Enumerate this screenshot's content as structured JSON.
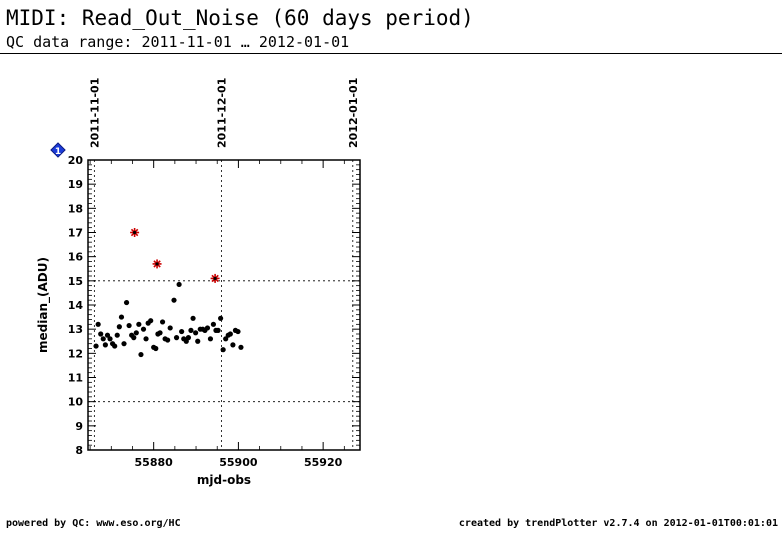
{
  "header": {
    "title": "MIDI: Read_Out_Noise (60 days period)",
    "subtitle": "QC data range: 2011-11-01 … 2012-01-01"
  },
  "footer": {
    "left": "powered by QC: www.eso.org/HC",
    "right": "created by trendPlotter v2.7.4 on 2012-01-01T00:01:01"
  },
  "chart_data": {
    "type": "scatter",
    "title": "",
    "xlabel": "mjd-obs",
    "ylabel": "median_(ADU)",
    "xlim": [
      55864.5,
      55928.7
    ],
    "ylim": [
      8,
      20
    ],
    "xticks": [
      55880,
      55900,
      55920
    ],
    "yticks": [
      8,
      9,
      10,
      11,
      12,
      13,
      14,
      15,
      16,
      17,
      18,
      19,
      20
    ],
    "date_markers": [
      {
        "label": "2011-11-01",
        "x": 55866
      },
      {
        "label": "2011-12-01",
        "x": 55896
      },
      {
        "label": "2012-01-01",
        "x": 55927
      }
    ],
    "thresholds": [
      10,
      15
    ],
    "marker_badge": "1",
    "series": [
      {
        "marker": "dot",
        "color": "#000000",
        "points": [
          [
            55866.4,
            12.3
          ],
          [
            55866.9,
            13.2
          ],
          [
            55867.5,
            12.8
          ],
          [
            55868.1,
            12.6
          ],
          [
            55868.6,
            12.35
          ],
          [
            55869.1,
            12.75
          ],
          [
            55869.7,
            12.6
          ],
          [
            55870.3,
            12.4
          ],
          [
            55870.8,
            12.3
          ],
          [
            55871.4,
            12.75
          ],
          [
            55871.9,
            13.1
          ],
          [
            55872.4,
            13.5
          ],
          [
            55873.0,
            12.4
          ],
          [
            55873.6,
            14.1
          ],
          [
            55874.2,
            13.15
          ],
          [
            55874.8,
            12.75
          ],
          [
            55875.3,
            12.65
          ],
          [
            55875.9,
            12.85
          ],
          [
            55876.5,
            13.2
          ],
          [
            55877.0,
            11.95
          ],
          [
            55877.6,
            13.0
          ],
          [
            55878.2,
            12.6
          ],
          [
            55878.7,
            13.25
          ],
          [
            55879.3,
            13.35
          ],
          [
            55880.0,
            12.25
          ],
          [
            55880.5,
            12.2
          ],
          [
            55881.0,
            12.8
          ],
          [
            55881.5,
            12.85
          ],
          [
            55882.1,
            13.3
          ],
          [
            55882.7,
            12.6
          ],
          [
            55883.3,
            12.55
          ],
          [
            55883.9,
            13.05
          ],
          [
            55884.8,
            14.2
          ],
          [
            55885.4,
            12.65
          ],
          [
            55886.0,
            14.85
          ],
          [
            55886.6,
            12.9
          ],
          [
            55887.1,
            12.6
          ],
          [
            55887.7,
            12.5
          ],
          [
            55888.2,
            12.65
          ],
          [
            55888.8,
            12.95
          ],
          [
            55889.3,
            13.45
          ],
          [
            55889.9,
            12.85
          ],
          [
            55890.4,
            12.5
          ],
          [
            55891.0,
            13.0
          ],
          [
            55891.6,
            13.0
          ],
          [
            55892.1,
            12.95
          ],
          [
            55892.7,
            13.05
          ],
          [
            55893.4,
            12.6
          ],
          [
            55894.1,
            13.2
          ],
          [
            55894.7,
            12.95
          ],
          [
            55895.2,
            12.95
          ],
          [
            55895.8,
            13.45
          ],
          [
            55896.4,
            12.15
          ],
          [
            55897.0,
            12.6
          ],
          [
            55897.6,
            12.75
          ],
          [
            55898.1,
            12.8
          ],
          [
            55898.7,
            12.35
          ],
          [
            55899.3,
            12.95
          ],
          [
            55899.9,
            12.9
          ],
          [
            55900.6,
            12.25
          ]
        ]
      },
      {
        "marker": "star",
        "color": "#cc0000",
        "points": [
          [
            55875.5,
            17.0
          ],
          [
            55880.8,
            15.7
          ],
          [
            55894.5,
            15.1
          ]
        ]
      }
    ]
  }
}
